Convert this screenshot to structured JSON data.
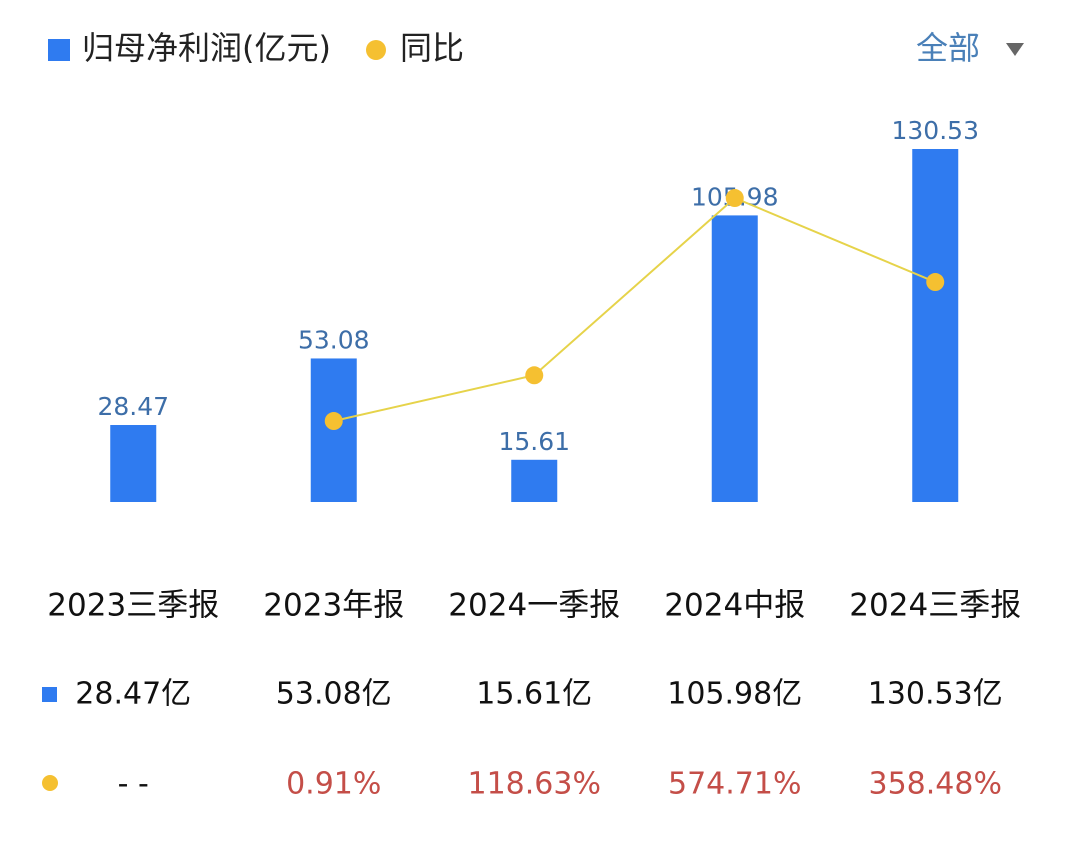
{
  "chart_data": {
    "type": "bar_line",
    "categories": [
      "2023三季报",
      "2023年报",
      "2024一季报",
      "2024中报",
      "2024三季报"
    ],
    "series": [
      {
        "name": "归母净利润(亿元)",
        "type": "bar",
        "color": "#2f7bf0",
        "values": [
          28.47,
          53.08,
          15.61,
          105.98,
          130.53
        ]
      },
      {
        "name": "同比",
        "type": "line",
        "axis": "y2",
        "color": "#f5c031",
        "line_color": "#e6d34a",
        "values": [
          null,
          0.91,
          118.63,
          574.71,
          358.48
        ],
        "value_labels": [
          "- -",
          "0.91%",
          "118.63%",
          "574.71%",
          "358.48%"
        ]
      }
    ],
    "ylim": [
      0,
      140
    ],
    "y2lim": [
      -207.5,
      766.7
    ],
    "filter": "全部"
  },
  "table": {
    "rows": [
      [
        "28.47亿",
        "53.08亿",
        "15.61亿",
        "105.98亿",
        "130.53亿"
      ],
      [
        "- -",
        "0.91%",
        "118.63%",
        "574.71%",
        "358.48%"
      ]
    ]
  }
}
